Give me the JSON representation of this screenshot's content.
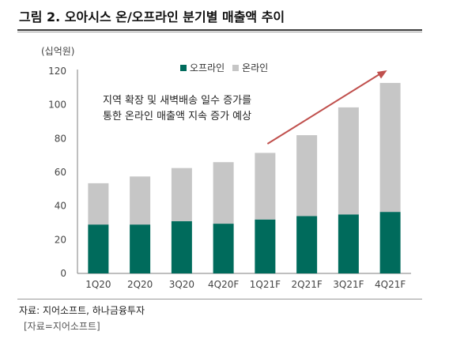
{
  "figure": {
    "title": "그림 2. 오아시스 온/오프라인 분기별 매출액 추이",
    "source": "자료: 지어소프트, 하나금융투자",
    "caption": "[자료=지어소프트]"
  },
  "colors": {
    "offline": "#006b5c",
    "online": "#c6c6c6",
    "arrow": "#c0504d",
    "axis": "#7f7f7f"
  },
  "chart_data": {
    "type": "bar",
    "stacked": true,
    "unit_label": "(십억원)",
    "categories": [
      "1Q20",
      "2Q20",
      "3Q20",
      "4Q20F",
      "1Q21F",
      "2Q21F",
      "3Q21F",
      "4Q21F"
    ],
    "series": [
      {
        "name": "오프라인",
        "values": [
          29,
          29,
          31,
          29.5,
          32,
          34,
          35,
          36.5
        ]
      },
      {
        "name": "온라인",
        "values": [
          24.5,
          28.5,
          31.5,
          36.5,
          39.5,
          48,
          63.5,
          76.5
        ]
      }
    ],
    "ylim": [
      0,
      120
    ],
    "yticks": [
      0,
      20,
      40,
      60,
      80,
      100,
      120
    ],
    "legend_position": "top-center",
    "grid": false,
    "annotation": {
      "lines": [
        "지역 확장 및 새벽배송 일수 증가를",
        "통한 온라인 매출액 지속 증가 예상"
      ]
    }
  }
}
